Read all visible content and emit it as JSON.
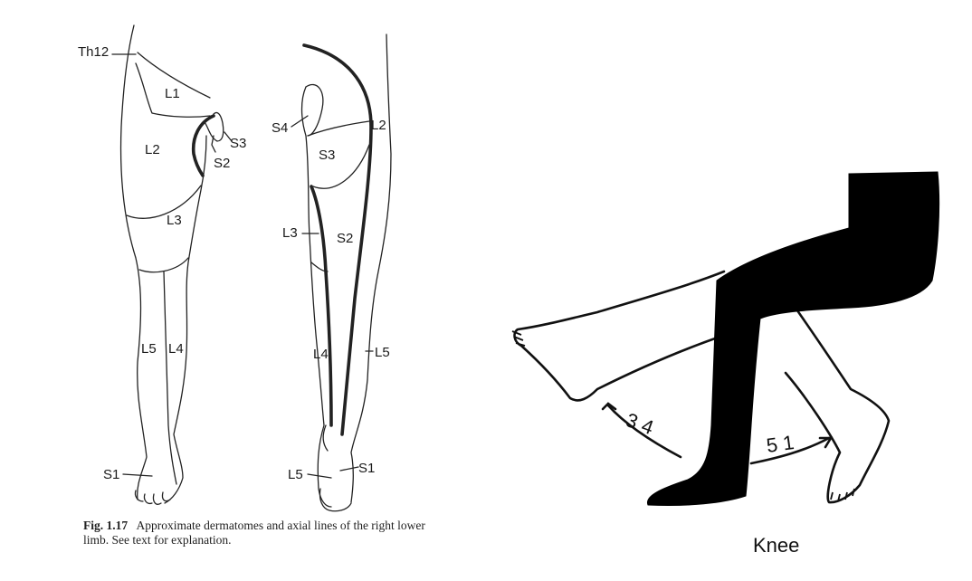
{
  "figure_left": {
    "front_labels": [
      "Th12",
      "L1",
      "S3",
      "L2",
      "S2",
      "L3",
      "L5",
      "L4",
      "S1"
    ],
    "back_labels": [
      "S4",
      "L2",
      "S3",
      "L3",
      "S2",
      "L4",
      "L5",
      "L5",
      "S1"
    ],
    "caption": {
      "number": "Fig. 1.17",
      "text": "Approximate dermatomes and axial lines of the right lower limb. See text for explanation."
    }
  },
  "figure_right": {
    "title": "Knee",
    "left_arrow_label": "3 4",
    "right_arrow_label": "5 1"
  }
}
